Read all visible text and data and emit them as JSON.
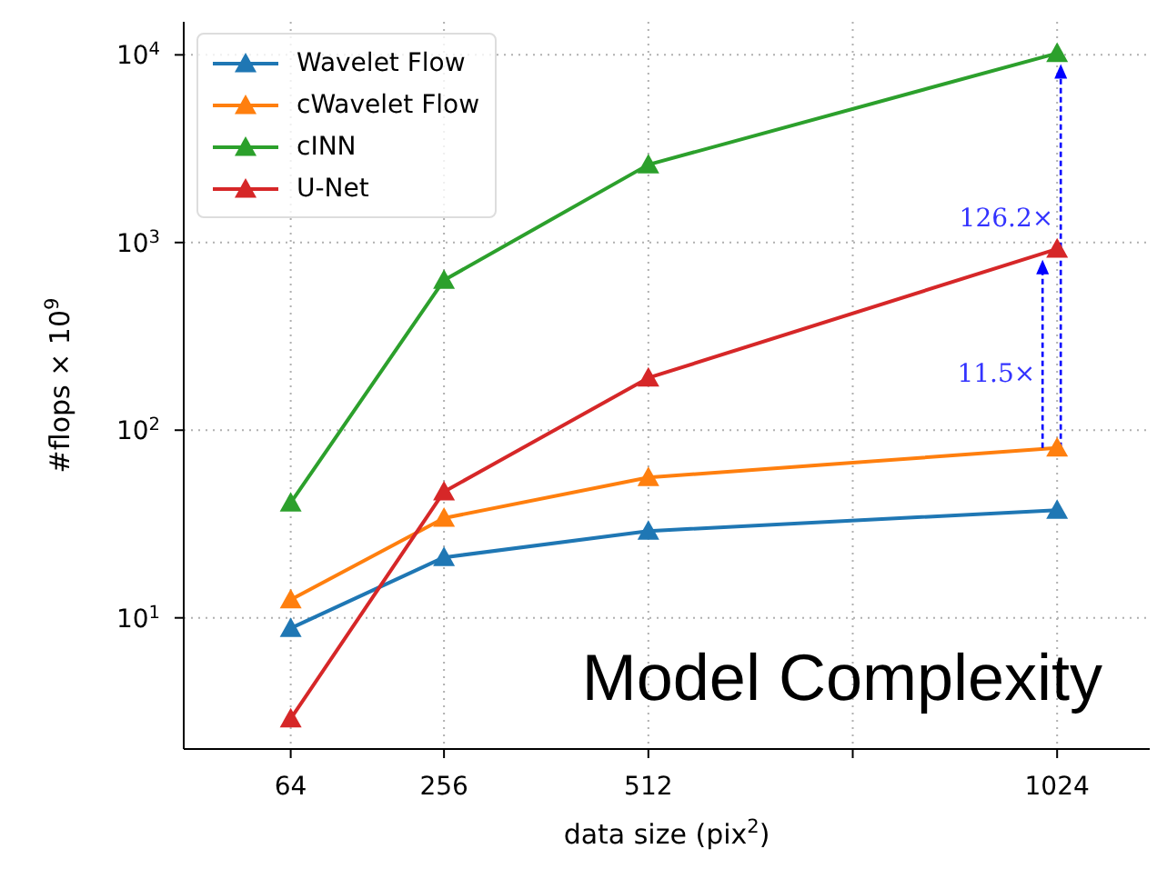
{
  "chart_data": {
    "type": "line",
    "xlabel": "data size (pix$^{2}$)",
    "ylabel": "#flops × 10$^{9}$",
    "x": [
      64,
      256,
      512,
      1024
    ],
    "series": [
      {
        "name": "Wavelet Flow",
        "color": "#1f77b4",
        "values": [
          8.8,
          21,
          29,
          37.5
        ]
      },
      {
        "name": "cWavelet Flow",
        "color": "#ff7f0e",
        "values": [
          12.5,
          34,
          56,
          80.5
        ]
      },
      {
        "name": "cINN",
        "color": "#2ca02c",
        "values": [
          41,
          630,
          2600,
          10200
        ]
      },
      {
        "name": "U-Net",
        "color": "#d62728",
        "values": [
          2.9,
          47,
          190,
          925
        ]
      }
    ],
    "xlim": [
      -70,
      1140
    ],
    "xticks": [
      64,
      256,
      512,
      {
        "value": 768,
        "label": null
      },
      1024
    ],
    "ylim": [
      2,
      15000
    ],
    "yticks": [
      {
        "value": 10,
        "label": "10$^{1}$"
      },
      {
        "value": 100,
        "label": "10$^{2}$"
      },
      {
        "value": 1000,
        "label": "10$^{3}$"
      },
      {
        "value": 10000,
        "label": "10$^{4}$"
      }
    ],
    "log": "y",
    "grid": true,
    "legend": "top left",
    "marker": "triangle",
    "line_style": "solid",
    "annotations": [
      "126.2×",
      "11.5×",
      "Model Complexity"
    ]
  }
}
